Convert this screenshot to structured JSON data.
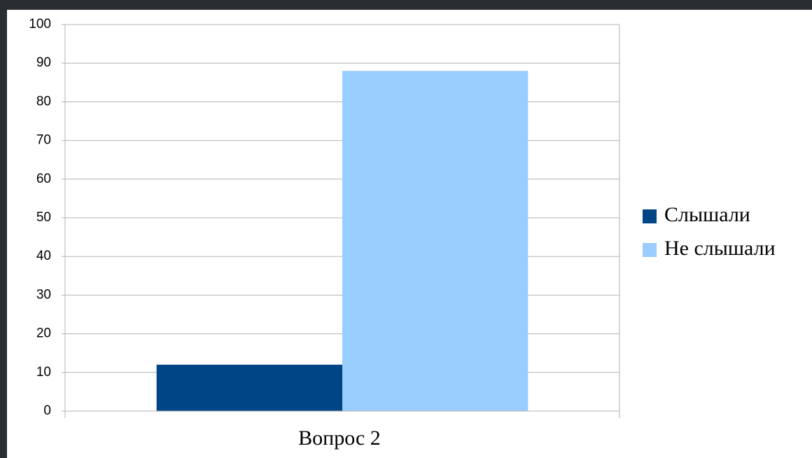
{
  "chart_data": {
    "type": "bar",
    "categories": [
      "Вопрос 2"
    ],
    "series": [
      {
        "name": "Слышали",
        "color": "#004586",
        "values": [
          12
        ]
      },
      {
        "name": "Не слышали",
        "color": "#99ccff",
        "values": [
          88
        ]
      }
    ],
    "ylim": [
      0,
      100
    ],
    "yticks": [
      0,
      10,
      20,
      30,
      40,
      50,
      60,
      70,
      80,
      90,
      100
    ],
    "grid": true,
    "legend": "right"
  }
}
